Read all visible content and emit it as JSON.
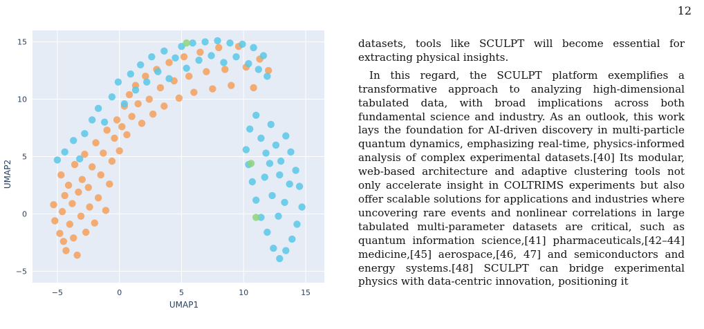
{
  "page_number": "12",
  "paragraphs": [
    "datasets, tools like SCULPT will become essential for extracting physical insights.",
    "In this regard, the SCULPT platform exemplifies a transformative approach to analyzing high-dimensional tabulated data, with broad implications across both fundamental science and industry. As an outlook, this work lays the foundation for AI-driven discovery in multi-particle quantum dynamics, emphasizing real-time, physics-informed analysis of complex experimental datasets.[40] Its modular, web-based architecture and adaptive clustering tools not only accelerate insight in COLTRIMS experiments but also offer scalable solutions for applications and industries where uncovering rare events and nonlinear correlations in large tabulated multi-parameter datasets are critical, such as quantum information science,[41] pharmaceuticals,[42–44] medicine,[45] aerospace,[46, 47] and semiconductors and energy systems.[48] SCULPT can bridge experimental physics with data-centric innovation, positioning it"
  ],
  "chart_data": {
    "type": "scatter",
    "xlabel": "UMAP1",
    "ylabel": "UMAP2",
    "xlim": [
      -7,
      16.5
    ],
    "ylim": [
      -6,
      16
    ],
    "xticks": [
      -5,
      0,
      5,
      10,
      15
    ],
    "yticks": [
      -5,
      0,
      5,
      10,
      15
    ],
    "grid": true,
    "colors": {
      "background": "#e5ecf6",
      "grid": "#ffffff"
    },
    "series": [
      {
        "color": "#f5a05a",
        "points": [
          [
            -5.3,
            0.8
          ],
          [
            -5.2,
            -0.6
          ],
          [
            -4.8,
            -1.7
          ],
          [
            -4.7,
            3.4
          ],
          [
            -4.6,
            0.2
          ],
          [
            -4.5,
            -2.4
          ],
          [
            -4.4,
            1.6
          ],
          [
            -4.3,
            -3.2
          ],
          [
            -4.1,
            2.5
          ],
          [
            -4.0,
            -0.9
          ],
          [
            -3.8,
            0.9
          ],
          [
            -3.7,
            -2.1
          ],
          [
            -3.6,
            4.3
          ],
          [
            -3.4,
            -3.6
          ],
          [
            -3.3,
            1.9
          ],
          [
            -3.1,
            -0.2
          ],
          [
            -3.0,
            3.0
          ],
          [
            -2.8,
            5.2
          ],
          [
            -2.7,
            -1.6
          ],
          [
            -2.5,
            2.3
          ],
          [
            -2.4,
            0.6
          ],
          [
            -2.2,
            4.1
          ],
          [
            -2.0,
            -0.8
          ],
          [
            -1.9,
            6.2
          ],
          [
            -1.7,
            1.4
          ],
          [
            -1.5,
            3.4
          ],
          [
            -1.3,
            5.3
          ],
          [
            -1.1,
            0.3
          ],
          [
            -1.0,
            7.3
          ],
          [
            -0.8,
            2.6
          ],
          [
            -0.6,
            4.6
          ],
          [
            -0.4,
            6.6
          ],
          [
            -0.2,
            8.2
          ],
          [
            0.0,
            5.5
          ],
          [
            0.2,
            7.6
          ],
          [
            0.4,
            9.4
          ],
          [
            0.6,
            6.9
          ],
          [
            0.8,
            10.4
          ],
          [
            1.0,
            8.5
          ],
          [
            1.3,
            11.2
          ],
          [
            1.5,
            9.6
          ],
          [
            1.8,
            7.9
          ],
          [
            2.1,
            12.0
          ],
          [
            2.4,
            10.0
          ],
          [
            2.7,
            8.7
          ],
          [
            3.0,
            12.6
          ],
          [
            3.3,
            11.0
          ],
          [
            3.6,
            9.4
          ],
          [
            4.0,
            13.2
          ],
          [
            4.4,
            11.6
          ],
          [
            4.8,
            10.1
          ],
          [
            5.2,
            13.7
          ],
          [
            5.6,
            12.0
          ],
          [
            6.0,
            10.6
          ],
          [
            6.5,
            14.1
          ],
          [
            7.0,
            12.4
          ],
          [
            7.5,
            10.9
          ],
          [
            8.0,
            14.5
          ],
          [
            8.5,
            12.6
          ],
          [
            9.0,
            11.2
          ],
          [
            9.6,
            14.6
          ],
          [
            10.2,
            12.8
          ],
          [
            10.8,
            11.0
          ],
          [
            11.3,
            13.5
          ],
          [
            12.0,
            12.5
          ]
        ]
      },
      {
        "color": "#5bc8e8",
        "points": [
          [
            -5.0,
            4.7
          ],
          [
            -4.4,
            5.4
          ],
          [
            -3.7,
            6.4
          ],
          [
            -3.2,
            4.8
          ],
          [
            -2.8,
            7.0
          ],
          [
            -2.2,
            8.2
          ],
          [
            -1.7,
            9.2
          ],
          [
            -1.2,
            8.0
          ],
          [
            -0.6,
            10.2
          ],
          [
            -0.1,
            11.5
          ],
          [
            0.4,
            9.6
          ],
          [
            0.9,
            12.2
          ],
          [
            1.3,
            10.8
          ],
          [
            1.7,
            13.0
          ],
          [
            2.2,
            11.5
          ],
          [
            2.6,
            13.7
          ],
          [
            3.1,
            12.4
          ],
          [
            3.6,
            14.2
          ],
          [
            4.0,
            11.8
          ],
          [
            4.5,
            13.6
          ],
          [
            5.0,
            14.6
          ],
          [
            5.4,
            12.7
          ],
          [
            5.9,
            14.9
          ],
          [
            6.4,
            13.4
          ],
          [
            6.9,
            15.0
          ],
          [
            7.4,
            13.8
          ],
          [
            7.9,
            15.1
          ],
          [
            8.4,
            13.2
          ],
          [
            8.9,
            14.9
          ],
          [
            9.4,
            13.7
          ],
          [
            9.9,
            14.8
          ],
          [
            10.4,
            13.1
          ],
          [
            10.8,
            14.5
          ],
          [
            11.2,
            12.6
          ],
          [
            11.6,
            13.8
          ],
          [
            11.9,
            12.0
          ],
          [
            10.5,
            7.4
          ],
          [
            11.0,
            8.6
          ],
          [
            11.4,
            6.6
          ],
          [
            11.8,
            5.3
          ],
          [
            12.2,
            7.8
          ],
          [
            12.6,
            6.0
          ],
          [
            13.0,
            4.6
          ],
          [
            13.4,
            6.8
          ],
          [
            13.8,
            5.4
          ],
          [
            14.2,
            3.8
          ],
          [
            14.5,
            2.4
          ],
          [
            14.7,
            0.6
          ],
          [
            14.3,
            -0.9
          ],
          [
            13.9,
            -2.2
          ],
          [
            13.4,
            -3.2
          ],
          [
            12.9,
            -3.9
          ],
          [
            12.4,
            -3.0
          ],
          [
            11.9,
            -1.6
          ],
          [
            11.4,
            -0.3
          ],
          [
            11.0,
            1.2
          ],
          [
            10.7,
            2.8
          ],
          [
            10.4,
            4.3
          ],
          [
            10.2,
            5.6
          ],
          [
            11.7,
            3.2
          ],
          [
            12.3,
            1.6
          ],
          [
            12.8,
            -0.2
          ],
          [
            13.3,
            1.0
          ],
          [
            13.7,
            2.6
          ],
          [
            12.1,
            4.4
          ],
          [
            12.9,
            3.4
          ]
        ]
      },
      {
        "color": "#8fd47a",
        "points": [
          [
            5.4,
            14.9
          ],
          [
            10.6,
            4.4
          ],
          [
            11.0,
            -0.3
          ]
        ]
      }
    ]
  }
}
